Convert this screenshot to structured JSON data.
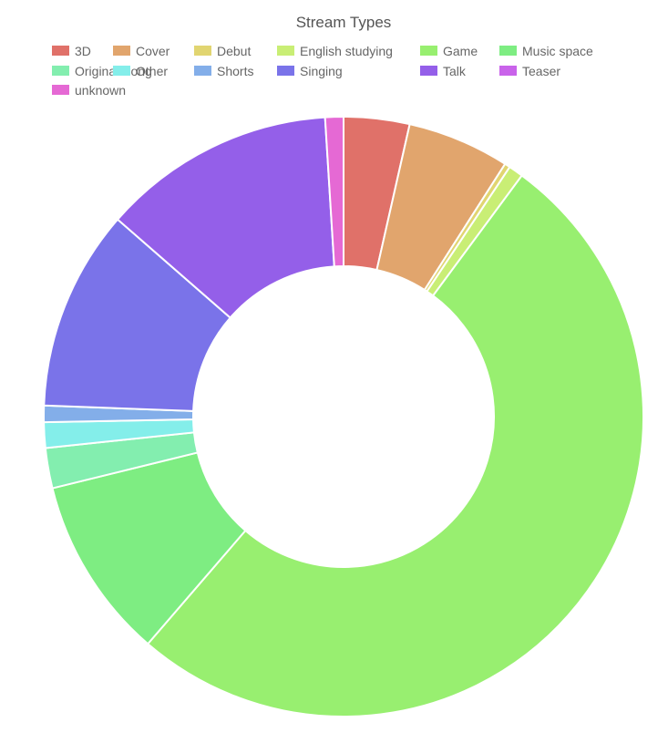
{
  "chart_data": {
    "type": "doughnut",
    "title": "Stream Types",
    "legend_position": "top",
    "categories": [
      "3D",
      "Cover",
      "Debut",
      "English studying",
      "Game",
      "Music space",
      "Original Song",
      "Other",
      "Shorts",
      "Singing",
      "Talk",
      "Teaser",
      "unknown"
    ],
    "values": [
      3.6,
      5.6,
      0.3,
      0.8,
      52.0,
      10.0,
      2.2,
      1.4,
      0.9,
      11.0,
      12.8,
      0.0,
      1.0
    ],
    "unit": "percent",
    "colors": [
      "#e07169",
      "#e1a56d",
      "#e1d571",
      "#c9ee75",
      "#98ef70",
      "#7eed82",
      "#83eeaf",
      "#84eeea",
      "#83aee9",
      "#7a73e9",
      "#945fe9",
      "#c963ea",
      "#e569d4"
    ],
    "grid": false
  }
}
